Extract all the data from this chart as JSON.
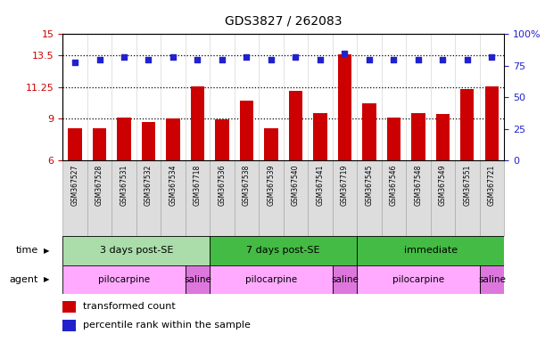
{
  "title": "GDS3827 / 262083",
  "samples": [
    "GSM367527",
    "GSM367528",
    "GSM367531",
    "GSM367532",
    "GSM367534",
    "GSM367718",
    "GSM367536",
    "GSM367538",
    "GSM367539",
    "GSM367540",
    "GSM367541",
    "GSM367719",
    "GSM367545",
    "GSM367546",
    "GSM367548",
    "GSM367549",
    "GSM367551",
    "GSM367721"
  ],
  "bar_values": [
    8.3,
    8.3,
    9.1,
    8.75,
    9.0,
    11.3,
    8.95,
    10.3,
    8.3,
    11.0,
    9.4,
    13.6,
    10.1,
    9.1,
    9.4,
    9.3,
    11.1,
    11.3
  ],
  "dot_values": [
    78,
    80,
    82,
    80,
    82,
    80,
    80,
    82,
    80,
    82,
    80,
    85,
    80,
    80,
    80,
    80,
    80,
    82
  ],
  "ylim_left": [
    6,
    15
  ],
  "ylim_right": [
    0,
    100
  ],
  "yticks_left": [
    6,
    9,
    11.25,
    13.5,
    15
  ],
  "yticks_right": [
    0,
    25,
    50,
    75,
    100
  ],
  "ytick_labels_left": [
    "6",
    "9",
    "11.25",
    "13.5",
    "15"
  ],
  "ytick_labels_right": [
    "0",
    "25",
    "50",
    "75",
    "100%"
  ],
  "hlines": [
    9,
    11.25,
    13.5
  ],
  "bar_color": "#cc0000",
  "dot_color": "#2222cc",
  "time_groups": [
    {
      "label": "3 days post-SE",
      "start": 0,
      "end": 5,
      "color": "#aaddaa"
    },
    {
      "label": "7 days post-SE",
      "start": 6,
      "end": 11,
      "color": "#44bb44"
    },
    {
      "label": "immediate",
      "start": 12,
      "end": 17,
      "color": "#44bb44"
    }
  ],
  "agent_groups": [
    {
      "label": "pilocarpine",
      "start": 0,
      "end": 4,
      "color": "#ffaaff"
    },
    {
      "label": "saline",
      "start": 5,
      "end": 5,
      "color": "#dd77dd"
    },
    {
      "label": "pilocarpine",
      "start": 6,
      "end": 10,
      "color": "#ffaaff"
    },
    {
      "label": "saline",
      "start": 11,
      "end": 11,
      "color": "#dd77dd"
    },
    {
      "label": "pilocarpine",
      "start": 12,
      "end": 16,
      "color": "#ffaaff"
    },
    {
      "label": "saline",
      "start": 17,
      "end": 17,
      "color": "#dd77dd"
    }
  ],
  "legend_bar_label": "transformed count",
  "legend_dot_label": "percentile rank within the sample",
  "time_label": "time",
  "agent_label": "agent",
  "background_color": "#ffffff",
  "tick_label_color_left": "#cc0000",
  "tick_label_color_right": "#2222cc",
  "sample_box_color": "#dddddd",
  "sample_box_edge": "#aaaaaa"
}
